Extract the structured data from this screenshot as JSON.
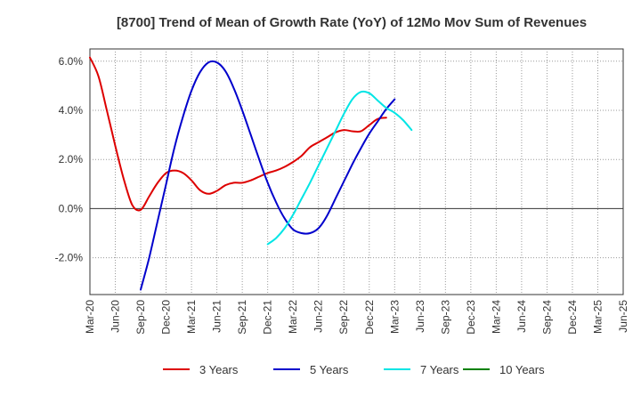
{
  "chart_data": {
    "type": "line",
    "title": "[8700]  Trend of Mean of Growth Rate (YoY) of 12Mo Mov Sum of Revenues",
    "xlabel": "",
    "ylabel": "",
    "y_unit": "%",
    "ylim": [
      -3.5,
      6.5
    ],
    "y_ticks": [
      6.0,
      4.0,
      2.0,
      0.0,
      -2.0
    ],
    "y_tick_labels": [
      "6.0%",
      "4.0%",
      "2.0%",
      "0.0%",
      "-2.0%"
    ],
    "x_tick_labels": [
      "Mar-20",
      "Jun-20",
      "Sep-20",
      "Dec-20",
      "Mar-21",
      "Jun-21",
      "Sep-21",
      "Dec-21",
      "Mar-22",
      "Jun-22",
      "Sep-22",
      "Dec-22",
      "Mar-23",
      "Jun-23",
      "Sep-23",
      "Dec-23",
      "Mar-24",
      "Jun-24",
      "Sep-24",
      "Dec-24",
      "Mar-25",
      "Jun-25"
    ],
    "x_start": "Mar-20",
    "x_step_months": 3,
    "legend_position": "bottom",
    "grid": true,
    "series": [
      {
        "name": "3 Years",
        "color": "#dd0000",
        "start_index": 0,
        "values": [
          6.15,
          5.4,
          4.0,
          2.55,
          1.2,
          0.15,
          -0.05,
          0.5,
          1.05,
          1.45,
          1.55,
          1.45,
          1.15,
          0.75,
          0.6,
          0.72,
          0.95,
          1.05,
          1.05,
          1.15,
          1.3,
          1.45,
          1.55,
          1.7,
          1.9,
          2.15,
          2.5,
          2.7,
          2.9,
          3.1,
          3.2,
          3.15,
          3.15,
          3.4,
          3.65,
          3.7
        ]
      },
      {
        "name": "5 Years",
        "color": "#0000cc",
        "start_index": 6,
        "values": [
          -3.3,
          -2.0,
          -0.5,
          1.0,
          2.5,
          3.75,
          4.8,
          5.55,
          5.95,
          5.95,
          5.6,
          4.9,
          4.0,
          3.0,
          2.0,
          1.05,
          0.25,
          -0.4,
          -0.85,
          -1.0,
          -1.0,
          -0.8,
          -0.3,
          0.4,
          1.1,
          1.8,
          2.45,
          3.05,
          3.55,
          4.05,
          4.45
        ]
      },
      {
        "name": "7 Years",
        "color": "#00e5e5",
        "start_index": 21,
        "values": [
          -1.45,
          -1.2,
          -0.8,
          -0.25,
          0.4,
          1.05,
          1.75,
          2.45,
          3.15,
          3.85,
          4.45,
          4.75,
          4.7,
          4.4,
          4.1,
          3.9,
          3.6,
          3.2
        ]
      },
      {
        "name": "10 Years",
        "color": "#008000",
        "start_index": 0,
        "values": []
      }
    ]
  }
}
